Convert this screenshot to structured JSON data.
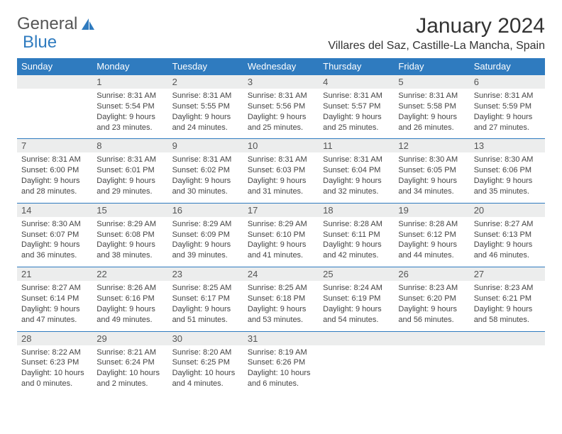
{
  "brand": {
    "main": "General",
    "sub": "Blue"
  },
  "title": "January 2024",
  "location": "Villares del Saz, Castille-La Mancha, Spain",
  "colors": {
    "header_bg": "#2f7bbf",
    "header_text": "#ffffff",
    "daynum_bg": "#eceded",
    "text": "#333333",
    "border": "#2f7bbf"
  },
  "weekdays": [
    "Sunday",
    "Monday",
    "Tuesday",
    "Wednesday",
    "Thursday",
    "Friday",
    "Saturday"
  ],
  "weeks": [
    [
      null,
      {
        "n": "1",
        "sr": "8:31 AM",
        "ss": "5:54 PM",
        "dl": "9 hours and 23 minutes."
      },
      {
        "n": "2",
        "sr": "8:31 AM",
        "ss": "5:55 PM",
        "dl": "9 hours and 24 minutes."
      },
      {
        "n": "3",
        "sr": "8:31 AM",
        "ss": "5:56 PM",
        "dl": "9 hours and 25 minutes."
      },
      {
        "n": "4",
        "sr": "8:31 AM",
        "ss": "5:57 PM",
        "dl": "9 hours and 25 minutes."
      },
      {
        "n": "5",
        "sr": "8:31 AM",
        "ss": "5:58 PM",
        "dl": "9 hours and 26 minutes."
      },
      {
        "n": "6",
        "sr": "8:31 AM",
        "ss": "5:59 PM",
        "dl": "9 hours and 27 minutes."
      }
    ],
    [
      {
        "n": "7",
        "sr": "8:31 AM",
        "ss": "6:00 PM",
        "dl": "9 hours and 28 minutes."
      },
      {
        "n": "8",
        "sr": "8:31 AM",
        "ss": "6:01 PM",
        "dl": "9 hours and 29 minutes."
      },
      {
        "n": "9",
        "sr": "8:31 AM",
        "ss": "6:02 PM",
        "dl": "9 hours and 30 minutes."
      },
      {
        "n": "10",
        "sr": "8:31 AM",
        "ss": "6:03 PM",
        "dl": "9 hours and 31 minutes."
      },
      {
        "n": "11",
        "sr": "8:31 AM",
        "ss": "6:04 PM",
        "dl": "9 hours and 32 minutes."
      },
      {
        "n": "12",
        "sr": "8:30 AM",
        "ss": "6:05 PM",
        "dl": "9 hours and 34 minutes."
      },
      {
        "n": "13",
        "sr": "8:30 AM",
        "ss": "6:06 PM",
        "dl": "9 hours and 35 minutes."
      }
    ],
    [
      {
        "n": "14",
        "sr": "8:30 AM",
        "ss": "6:07 PM",
        "dl": "9 hours and 36 minutes."
      },
      {
        "n": "15",
        "sr": "8:29 AM",
        "ss": "6:08 PM",
        "dl": "9 hours and 38 minutes."
      },
      {
        "n": "16",
        "sr": "8:29 AM",
        "ss": "6:09 PM",
        "dl": "9 hours and 39 minutes."
      },
      {
        "n": "17",
        "sr": "8:29 AM",
        "ss": "6:10 PM",
        "dl": "9 hours and 41 minutes."
      },
      {
        "n": "18",
        "sr": "8:28 AM",
        "ss": "6:11 PM",
        "dl": "9 hours and 42 minutes."
      },
      {
        "n": "19",
        "sr": "8:28 AM",
        "ss": "6:12 PM",
        "dl": "9 hours and 44 minutes."
      },
      {
        "n": "20",
        "sr": "8:27 AM",
        "ss": "6:13 PM",
        "dl": "9 hours and 46 minutes."
      }
    ],
    [
      {
        "n": "21",
        "sr": "8:27 AM",
        "ss": "6:14 PM",
        "dl": "9 hours and 47 minutes."
      },
      {
        "n": "22",
        "sr": "8:26 AM",
        "ss": "6:16 PM",
        "dl": "9 hours and 49 minutes."
      },
      {
        "n": "23",
        "sr": "8:25 AM",
        "ss": "6:17 PM",
        "dl": "9 hours and 51 minutes."
      },
      {
        "n": "24",
        "sr": "8:25 AM",
        "ss": "6:18 PM",
        "dl": "9 hours and 53 minutes."
      },
      {
        "n": "25",
        "sr": "8:24 AM",
        "ss": "6:19 PM",
        "dl": "9 hours and 54 minutes."
      },
      {
        "n": "26",
        "sr": "8:23 AM",
        "ss": "6:20 PM",
        "dl": "9 hours and 56 minutes."
      },
      {
        "n": "27",
        "sr": "8:23 AM",
        "ss": "6:21 PM",
        "dl": "9 hours and 58 minutes."
      }
    ],
    [
      {
        "n": "28",
        "sr": "8:22 AM",
        "ss": "6:23 PM",
        "dl": "10 hours and 0 minutes."
      },
      {
        "n": "29",
        "sr": "8:21 AM",
        "ss": "6:24 PM",
        "dl": "10 hours and 2 minutes."
      },
      {
        "n": "30",
        "sr": "8:20 AM",
        "ss": "6:25 PM",
        "dl": "10 hours and 4 minutes."
      },
      {
        "n": "31",
        "sr": "8:19 AM",
        "ss": "6:26 PM",
        "dl": "10 hours and 6 minutes."
      },
      null,
      null,
      null
    ]
  ],
  "labels": {
    "sunrise": "Sunrise:",
    "sunset": "Sunset:",
    "daylight": "Daylight:"
  }
}
